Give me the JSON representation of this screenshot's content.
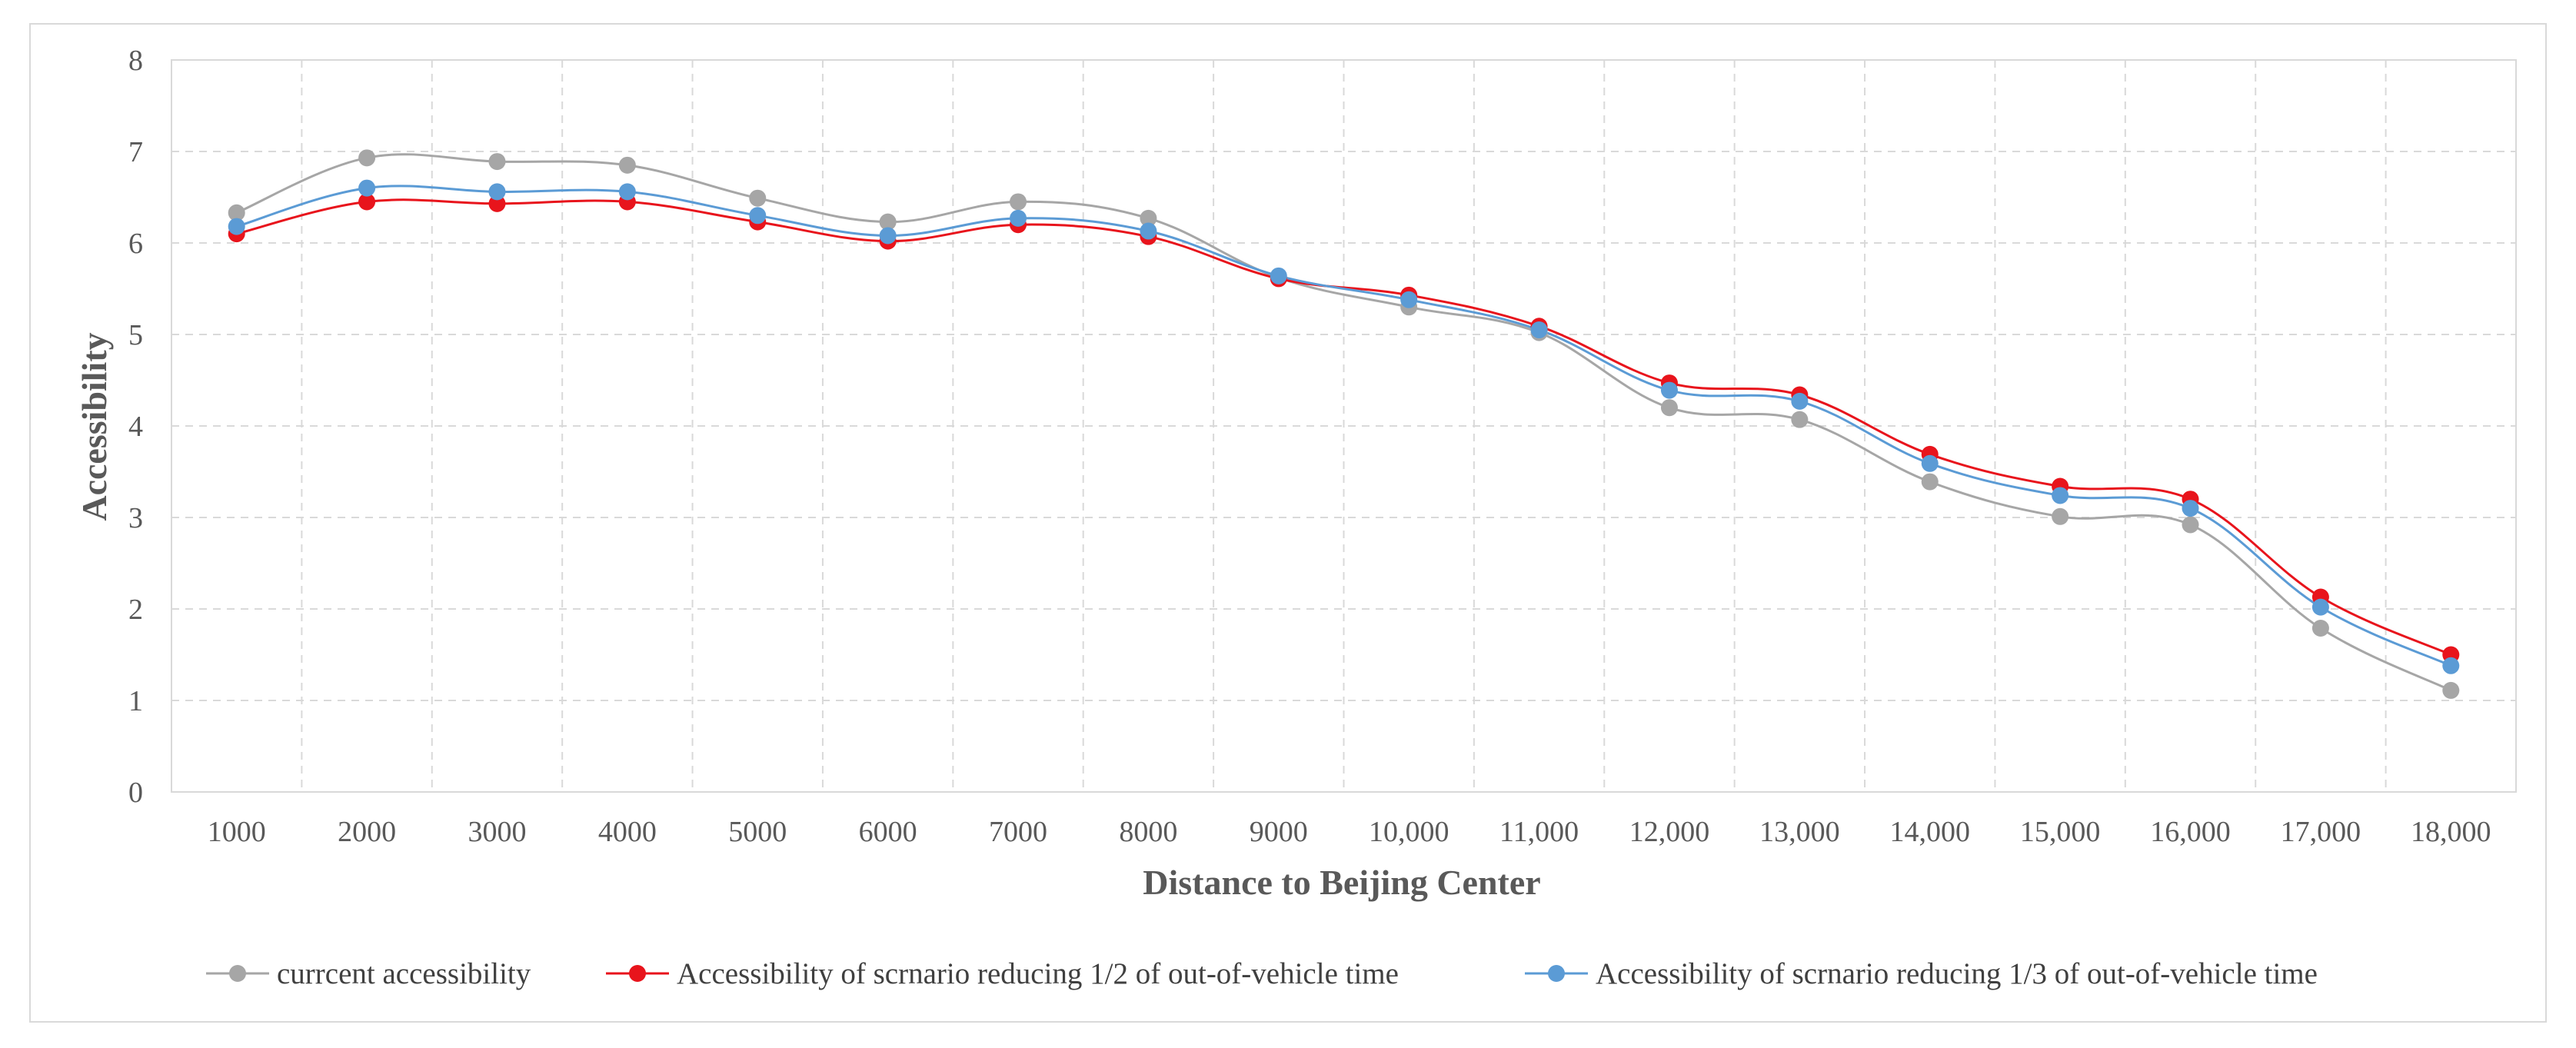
{
  "chart_data": {
    "type": "line",
    "title": "",
    "xlabel": "Distance to Beijing Center",
    "ylabel": "Accessibility",
    "ylim": [
      0,
      8
    ],
    "yticks": [
      "0",
      "1",
      "2",
      "3",
      "4",
      "5",
      "6",
      "7",
      "8"
    ],
    "categories": [
      "1000",
      "2000",
      "3000",
      "4000",
      "5000",
      "6000",
      "7000",
      "8000",
      "9000",
      "10,000",
      "11,000",
      "12,000",
      "13,000",
      "14,000",
      "15,000",
      "16,000",
      "17,000",
      "18,000"
    ],
    "grid": true,
    "legend_position": "bottom",
    "series": [
      {
        "name": "currcent accessibility",
        "color": "#a6a6a6",
        "values": [
          6.33,
          6.93,
          6.89,
          6.85,
          6.49,
          6.23,
          6.45,
          6.27,
          5.62,
          5.3,
          5.02,
          4.2,
          4.07,
          3.39,
          3.01,
          2.92,
          1.79,
          1.11
        ]
      },
      {
        "name": "Accessibility of scrnario reducing 1/2 of out-of-vehicle time",
        "color": "#e8141c",
        "values": [
          6.1,
          6.45,
          6.43,
          6.45,
          6.23,
          6.02,
          6.2,
          6.07,
          5.61,
          5.43,
          5.09,
          4.47,
          4.34,
          3.69,
          3.34,
          3.2,
          2.13,
          1.5
        ]
      },
      {
        "name": "Accessibility of scrnario reducing 1/3 of out-of-vehicle time",
        "color": "#5b9bd5",
        "values": [
          6.18,
          6.6,
          6.56,
          6.56,
          6.3,
          6.08,
          6.27,
          6.13,
          5.64,
          5.38,
          5.05,
          4.39,
          4.27,
          3.59,
          3.24,
          3.1,
          2.02,
          1.38
        ]
      }
    ]
  }
}
